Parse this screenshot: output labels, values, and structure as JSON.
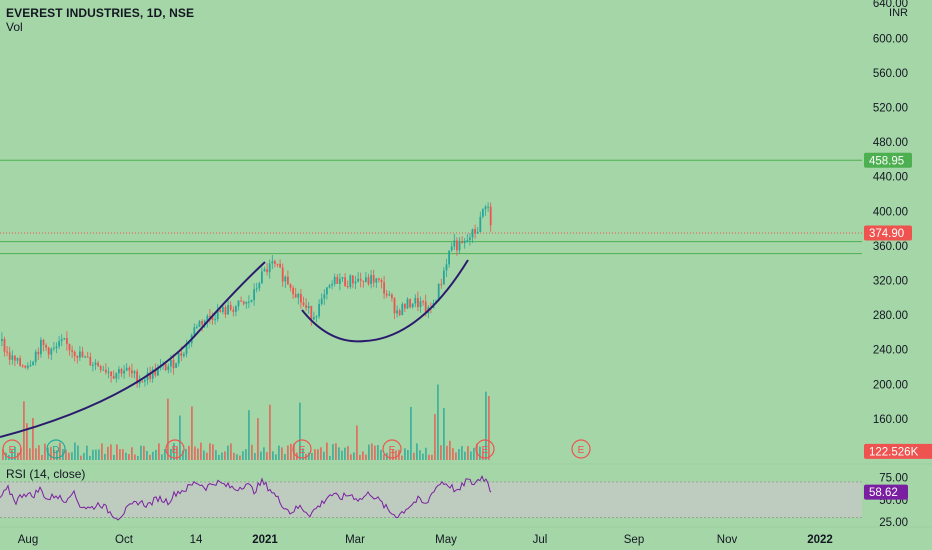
{
  "header": {
    "title": "EVEREST INDUSTRIES, 1D, NSE",
    "vol_label": "Vol",
    "rsi_label": "RSI (14, close)"
  },
  "colors": {
    "background": "#a5d6a7",
    "up": "#26a69a",
    "down": "#ef5350",
    "level_line": "#4caf50",
    "cup_curve": "#2a1b6e",
    "rsi_line": "#7b1fa2",
    "rsi_band": "#c8c8c8"
  },
  "chart_data": {
    "type": "candlestick",
    "symbol": "EVEREST INDUSTRIES",
    "interval": "1D",
    "exchange": "NSE",
    "currency": "INR",
    "y_range": [
      120,
      640
    ],
    "y_ticks": [
      640,
      600,
      560,
      520,
      480,
      440,
      400,
      360,
      320,
      280,
      240,
      200,
      160,
      120
    ],
    "x_ticks": [
      "Aug",
      "Oct",
      "14",
      "2021",
      "Mar",
      "May",
      "Jul",
      "Sep",
      "Nov",
      "2022"
    ],
    "price_markers": [
      {
        "label": "458.95",
        "value": 458.95,
        "color": "#4caf50"
      },
      {
        "label": "374.90",
        "value": 374.9,
        "color": "#ef5350"
      },
      {
        "label": "122.526K",
        "value": 122.5,
        "color": "#ef5350"
      }
    ],
    "horizontal_levels": [
      458.95,
      365,
      351
    ],
    "last_close": 374.9,
    "close_path": [
      [
        0,
        250
      ],
      [
        8,
        232
      ],
      [
        18,
        222
      ],
      [
        28,
        225
      ],
      [
        40,
        245
      ],
      [
        52,
        238
      ],
      [
        62,
        248
      ],
      [
        72,
        240
      ],
      [
        85,
        228
      ],
      [
        100,
        222
      ],
      [
        112,
        212
      ],
      [
        122,
        218
      ],
      [
        132,
        210
      ],
      [
        140,
        205
      ],
      [
        150,
        212
      ],
      [
        160,
        218
      ],
      [
        170,
        222
      ],
      [
        180,
        235
      ],
      [
        188,
        250
      ],
      [
        196,
        270
      ],
      [
        205,
        275
      ],
      [
        215,
        282
      ],
      [
        225,
        285
      ],
      [
        235,
        290
      ],
      [
        245,
        292
      ],
      [
        252,
        300
      ],
      [
        258,
        320
      ],
      [
        265,
        332
      ],
      [
        272,
        338
      ],
      [
        280,
        328
      ],
      [
        288,
        318
      ],
      [
        296,
        305
      ],
      [
        304,
        288
      ],
      [
        312,
        280
      ],
      [
        320,
        292
      ],
      [
        328,
        310
      ],
      [
        336,
        322
      ],
      [
        345,
        318
      ],
      [
        355,
        322
      ],
      [
        365,
        318
      ],
      [
        372,
        322
      ],
      [
        380,
        315
      ],
      [
        388,
        300
      ],
      [
        396,
        284
      ],
      [
        404,
        290
      ],
      [
        412,
        296
      ],
      [
        420,
        292
      ],
      [
        428,
        282
      ],
      [
        434,
        298
      ],
      [
        440,
        318
      ],
      [
        446,
        345
      ],
      [
        452,
        365
      ],
      [
        458,
        358
      ],
      [
        464,
        362
      ],
      [
        470,
        372
      ],
      [
        476,
        378
      ],
      [
        481,
        395
      ],
      [
        484,
        412
      ],
      [
        487,
        405
      ],
      [
        490,
        380
      ],
      [
        491,
        374.9
      ]
    ],
    "events": [
      {
        "label": "E",
        "color": "#ef5350"
      },
      {
        "label": "D",
        "color": "#26a69a"
      },
      {
        "label": "E",
        "color": "#ef5350"
      },
      {
        "label": "E",
        "color": "#ef5350"
      },
      {
        "label": "E",
        "color": "#ef5350"
      },
      {
        "label": "E",
        "color": "#ef5350"
      },
      {
        "label": "E",
        "color": "#ef5350"
      }
    ],
    "rsi": {
      "period": 14,
      "source": "close",
      "last": 58.62,
      "label": "58.62",
      "upper": 70,
      "lower": 30,
      "y_ticks": [
        75,
        50,
        25
      ],
      "path": [
        [
          0,
          52
        ],
        [
          8,
          62
        ],
        [
          16,
          48
        ],
        [
          24,
          58
        ],
        [
          32,
          54
        ],
        [
          40,
          62
        ],
        [
          48,
          50
        ],
        [
          56,
          56
        ],
        [
          64,
          48
        ],
        [
          72,
          60
        ],
        [
          80,
          44
        ],
        [
          90,
          40
        ],
        [
          100,
          46
        ],
        [
          110,
          36
        ],
        [
          118,
          30
        ],
        [
          128,
          40
        ],
        [
          138,
          48
        ],
        [
          148,
          44
        ],
        [
          158,
          52
        ],
        [
          168,
          48
        ],
        [
          176,
          58
        ],
        [
          186,
          62
        ],
        [
          196,
          70
        ],
        [
          206,
          64
        ],
        [
          216,
          70
        ],
        [
          226,
          66
        ],
        [
          236,
          62
        ],
        [
          246,
          68
        ],
        [
          254,
          60
        ],
        [
          262,
          70
        ],
        [
          270,
          62
        ],
        [
          280,
          48
        ],
        [
          290,
          36
        ],
        [
          300,
          42
        ],
        [
          310,
          34
        ],
        [
          320,
          44
        ],
        [
          330,
          56
        ],
        [
          340,
          52
        ],
        [
          350,
          56
        ],
        [
          360,
          50
        ],
        [
          370,
          58
        ],
        [
          380,
          48
        ],
        [
          390,
          36
        ],
        [
          398,
          32
        ],
        [
          408,
          42
        ],
        [
          418,
          50
        ],
        [
          426,
          44
        ],
        [
          434,
          62
        ],
        [
          442,
          70
        ],
        [
          450,
          66
        ],
        [
          458,
          58
        ],
        [
          466,
          72
        ],
        [
          474,
          68
        ],
        [
          482,
          76
        ],
        [
          488,
          70
        ],
        [
          491,
          58.62
        ]
      ]
    }
  }
}
